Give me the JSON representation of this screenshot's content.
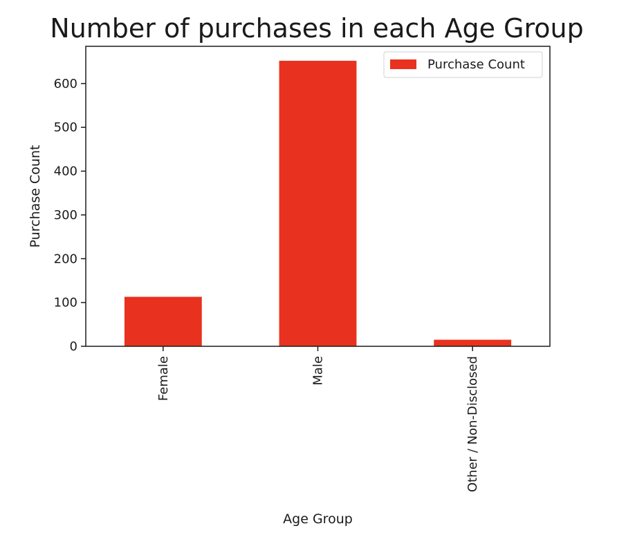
{
  "chart_data": {
    "type": "bar",
    "title": "Number of purchases in each Age Group",
    "xlabel": "Age Group",
    "ylabel": "Purchase Count",
    "categories": [
      "Female",
      "Male",
      "Other / Non-Disclosed"
    ],
    "series": [
      {
        "name": "Purchase Count",
        "values": [
          113,
          652,
          15
        ],
        "color": "#e8321f"
      }
    ],
    "ylim": [
      0,
      685
    ],
    "yticks": [
      0,
      100,
      200,
      300,
      400,
      500,
      600
    ],
    "ytick_labels": [
      "0",
      "100",
      "200",
      "300",
      "400",
      "500",
      "600"
    ],
    "grid": false,
    "legend": {
      "position": "top-right",
      "entries": [
        "Purchase Count"
      ]
    }
  }
}
